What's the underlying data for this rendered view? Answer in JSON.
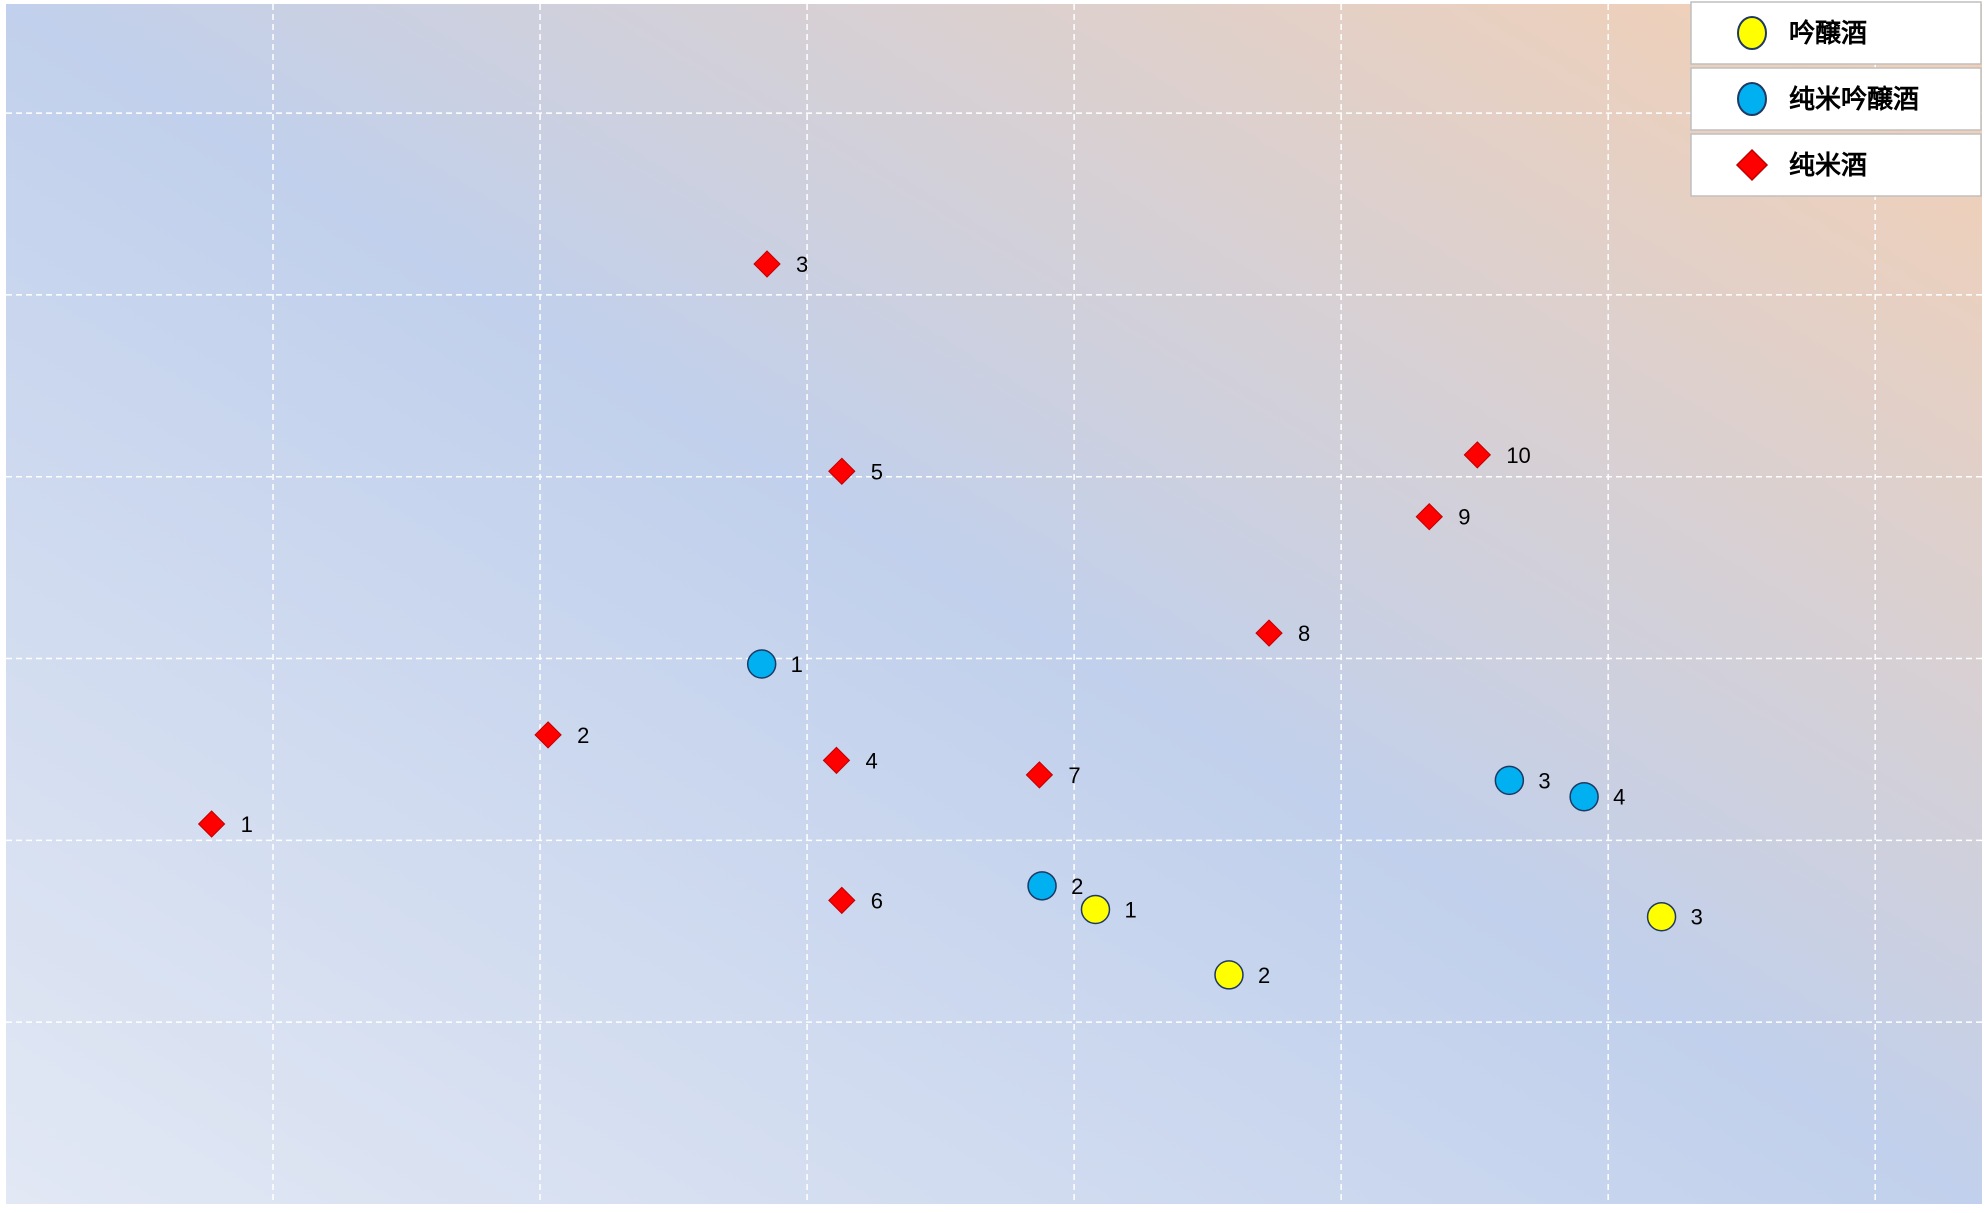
{
  "chart_data": {
    "type": "scatter",
    "grid": true,
    "legend_position": "top-right",
    "series": [
      {
        "name": "吟醸酒",
        "marker": "circle",
        "color": "#ffff00",
        "edge_color": "#1f3864",
        "points": [
          {
            "label": "1",
            "x": 4.08,
            "y": 1.62
          },
          {
            "label": "2",
            "x": 4.58,
            "y": 1.26
          },
          {
            "label": "3",
            "x": 6.2,
            "y": 1.58
          }
        ]
      },
      {
        "name": "纯米吟醸酒",
        "marker": "circle",
        "color": "#00b0f0",
        "edge_color": "#1f3864",
        "points": [
          {
            "label": "1",
            "x": 2.83,
            "y": 2.97
          },
          {
            "label": "2",
            "x": 3.88,
            "y": 1.75
          },
          {
            "label": "3",
            "x": 5.63,
            "y": 2.33
          },
          {
            "label": "4",
            "x": 5.91,
            "y": 2.24
          }
        ]
      },
      {
        "name": "纯米酒",
        "marker": "diamond",
        "color": "#ff0000",
        "edge_color": "#c00000",
        "points": [
          {
            "label": "1",
            "x": 0.77,
            "y": 2.09
          },
          {
            "label": "2",
            "x": 2.03,
            "y": 2.58
          },
          {
            "label": "3",
            "x": 2.85,
            "y": 5.17
          },
          {
            "label": "4",
            "x": 3.11,
            "y": 2.44
          },
          {
            "label": "5",
            "x": 3.13,
            "y": 4.03
          },
          {
            "label": "6",
            "x": 3.13,
            "y": 1.67
          },
          {
            "label": "7",
            "x": 3.87,
            "y": 2.36
          },
          {
            "label": "8",
            "x": 4.73,
            "y": 3.14
          },
          {
            "label": "9",
            "x": 5.33,
            "y": 3.78
          },
          {
            "label": "10",
            "x": 5.51,
            "y": 4.12
          }
        ]
      }
    ],
    "xlim": [
      0,
      7.4
    ],
    "ylim": [
      0,
      6.6
    ],
    "x_gridlines": [
      1,
      2,
      3,
      4,
      5,
      6,
      7
    ],
    "y_gridlines": [
      1,
      2,
      3,
      4,
      5,
      6
    ]
  }
}
